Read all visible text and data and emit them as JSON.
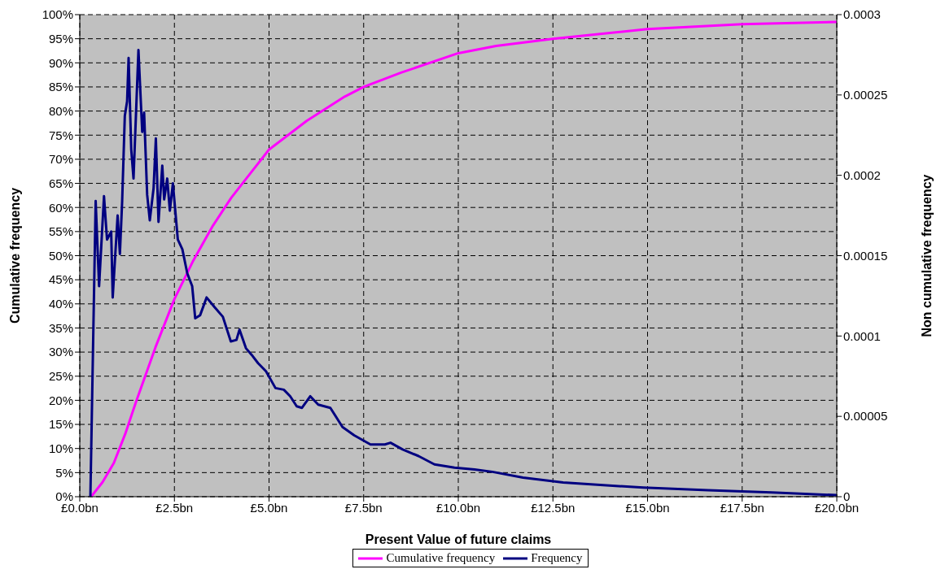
{
  "chart_data": {
    "type": "line",
    "xlabel": "Present Value of future claims",
    "ylabel": "Cumulative frequency",
    "y2label": "Non cumulative frequency",
    "xlim": [
      0,
      20
    ],
    "xticks": [
      {
        "value": 0,
        "label": "£0.0bn"
      },
      {
        "value": 2.5,
        "label": "£2.5bn"
      },
      {
        "value": 5,
        "label": "£5.0bn"
      },
      {
        "value": 7.5,
        "label": "£7.5bn"
      },
      {
        "value": 10,
        "label": "£10.0bn"
      },
      {
        "value": 12.5,
        "label": "£12.5bn"
      },
      {
        "value": 15,
        "label": "£15.0bn"
      },
      {
        "value": 17.5,
        "label": "£17.5bn"
      },
      {
        "value": 20,
        "label": "£20.0bn"
      }
    ],
    "ylim": [
      0,
      100
    ],
    "yticks": [
      {
        "value": 0,
        "label": "0%"
      },
      {
        "value": 5,
        "label": "5%"
      },
      {
        "value": 10,
        "label": "10%"
      },
      {
        "value": 15,
        "label": "15%"
      },
      {
        "value": 20,
        "label": "20%"
      },
      {
        "value": 25,
        "label": "25%"
      },
      {
        "value": 30,
        "label": "30%"
      },
      {
        "value": 35,
        "label": "35%"
      },
      {
        "value": 40,
        "label": "40%"
      },
      {
        "value": 45,
        "label": "45%"
      },
      {
        "value": 50,
        "label": "50%"
      },
      {
        "value": 55,
        "label": "55%"
      },
      {
        "value": 60,
        "label": "60%"
      },
      {
        "value": 65,
        "label": "65%"
      },
      {
        "value": 70,
        "label": "70%"
      },
      {
        "value": 75,
        "label": "75%"
      },
      {
        "value": 80,
        "label": "80%"
      },
      {
        "value": 85,
        "label": "85%"
      },
      {
        "value": 90,
        "label": "90%"
      },
      {
        "value": 95,
        "label": "95%"
      },
      {
        "value": 100,
        "label": "100%"
      }
    ],
    "y2lim": [
      0,
      0.0003
    ],
    "y2ticks": [
      {
        "value": 0,
        "label": "0"
      },
      {
        "value": 5e-05,
        "label": "0.00005"
      },
      {
        "value": 0.0001,
        "label": "0.0001"
      },
      {
        "value": 0.00015,
        "label": "0.00015"
      },
      {
        "value": 0.0002,
        "label": "0.0002"
      },
      {
        "value": 0.00025,
        "label": "0.00025"
      },
      {
        "value": 0.0003,
        "label": "0.0003"
      }
    ],
    "grid": true,
    "legend": "bottom",
    "marker": "none",
    "line_style": "solid",
    "series": [
      {
        "name": "Cumulative frequency",
        "color": "#ff00ff",
        "x": [
          0.3,
          0.6,
          0.9,
          1.2,
          1.5,
          2.0,
          2.5,
          3.0,
          3.5,
          4.0,
          4.5,
          5.0,
          6.0,
          7.0,
          7.5,
          8.5,
          10,
          11,
          12.5,
          15,
          17.5,
          20
        ],
        "values": [
          0,
          3,
          7,
          13,
          20,
          31,
          41,
          49,
          56,
          62,
          67,
          72,
          78,
          83,
          85,
          88,
          92,
          93.5,
          95,
          97,
          98,
          98.5
        ]
      },
      {
        "name": "Frequency",
        "color": "#000080",
        "axis": "y2",
        "x": [
          0.28,
          0.42,
          0.51,
          0.64,
          0.72,
          0.83,
          0.87,
          1.0,
          1.06,
          1.12,
          1.19,
          1.25,
          1.29,
          1.36,
          1.42,
          1.55,
          1.65,
          1.7,
          1.78,
          1.85,
          1.95,
          2.01,
          2.08,
          2.18,
          2.23,
          2.31,
          2.38,
          2.46,
          2.59,
          2.71,
          2.84,
          2.97,
          3.05,
          3.18,
          3.35,
          3.56,
          3.78,
          3.99,
          4.14,
          4.22,
          4.39,
          4.54,
          4.71,
          4.92,
          5.17,
          5.39,
          5.56,
          5.73,
          5.87,
          6.09,
          6.3,
          6.62,
          6.94,
          7.25,
          7.68,
          8.06,
          8.21,
          8.53,
          8.95,
          9.37,
          9.9,
          10.43,
          10.9,
          11.71,
          12.77,
          13.83,
          14.89,
          16.59,
          18.28,
          20.0
        ],
        "values": [
          0,
          0.000184,
          0.000131,
          0.000187,
          0.00016,
          0.000165,
          0.000124,
          0.000175,
          0.000151,
          0.000184,
          0.000237,
          0.000246,
          0.000273,
          0.000216,
          0.000198,
          0.000278,
          0.000227,
          0.000239,
          0.000188,
          0.000172,
          0.000192,
          0.000223,
          0.000171,
          0.000206,
          0.000185,
          0.000198,
          0.000178,
          0.000195,
          0.00016,
          0.000154,
          0.000139,
          0.000131,
          0.000111,
          0.000113,
          0.000124,
          0.000118,
          0.000112,
          9.66e-05,
          9.76e-05,
          0.000104,
          9.24e-05,
          8.83e-05,
          8.31e-05,
          7.8e-05,
          6.76e-05,
          6.66e-05,
          6.25e-05,
          5.63e-05,
          5.53e-05,
          6.25e-05,
          5.73e-05,
          5.53e-05,
          4.34e-05,
          3.82e-05,
          3.25e-05,
          3.25e-05,
          3.36e-05,
          2.94e-05,
          2.53e-05,
          2.01e-05,
          1.81e-05,
          1.7e-05,
          1.55e-05,
          1.19e-05,
          8.8e-06,
          7.2e-06,
          5.7e-06,
          4.1e-06,
          2.6e-06,
          1e-06
        ]
      }
    ]
  }
}
